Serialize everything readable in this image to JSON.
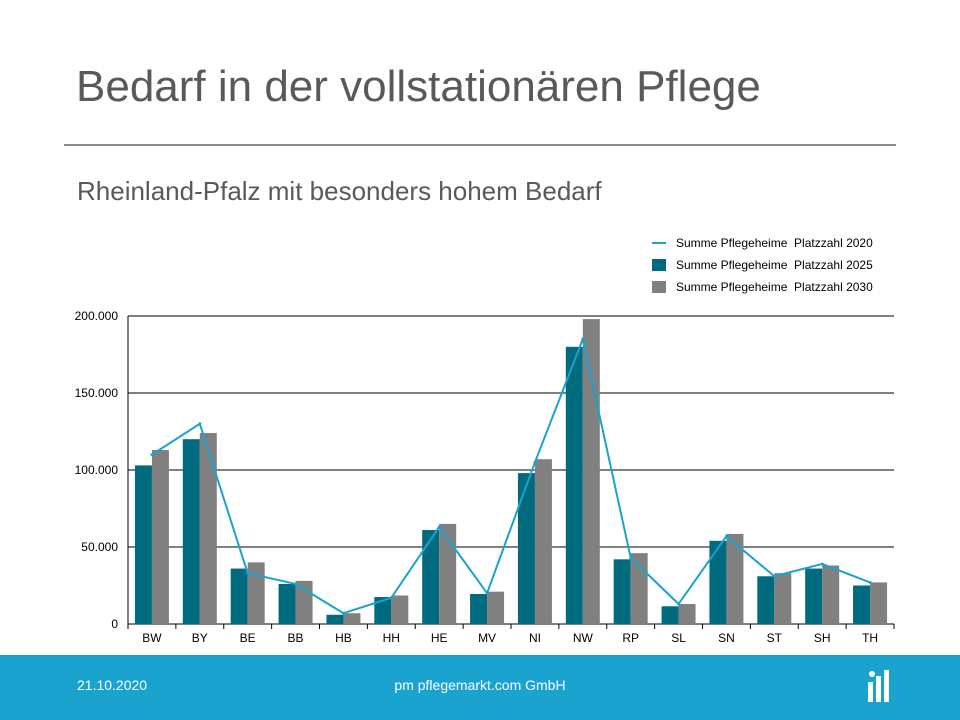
{
  "slide": {
    "title": "Bedarf in der vollstationären Pflege",
    "subtitle": "Rheinland-Pfalz mit besonders hohem Bedarf"
  },
  "footer": {
    "date": "21.10.2020",
    "company": "pm pflegemarkt.com GmbH",
    "logo_icon": "bar-chart-logo-icon"
  },
  "colors": {
    "series_2020": "#1aa3cf",
    "series_2025": "#006b7f",
    "series_2030": "#808080",
    "footer_bg": "#1aa3cf"
  },
  "chart_data": {
    "type": "bar",
    "categories": [
      "BW",
      "BY",
      "BE",
      "BB",
      "HB",
      "HH",
      "HE",
      "MV",
      "NI",
      "NW",
      "RP",
      "SL",
      "SN",
      "ST",
      "SH",
      "TH"
    ],
    "series": [
      {
        "name": "Summe Pflegeheime  Platzzahl 2020",
        "render": "line",
        "color": "#1aa3cf",
        "values": [
          110000,
          130000,
          33000,
          26000,
          7000,
          17000,
          63000,
          20000,
          105000,
          185000,
          43000,
          13000,
          57000,
          31000,
          39000,
          27000
        ]
      },
      {
        "name": "Summe Pflegeheime  Platzzahl 2025",
        "render": "bar",
        "color": "#006b7f",
        "values": [
          103000,
          120000,
          36000,
          26000,
          6000,
          17500,
          61000,
          19500,
          98000,
          180000,
          42000,
          11500,
          54000,
          31000,
          36000,
          25000
        ]
      },
      {
        "name": "Summe Pflegeheime  Platzzahl 2030",
        "render": "bar",
        "color": "#808080",
        "values": [
          113000,
          124000,
          40000,
          28000,
          7000,
          18500,
          65000,
          21000,
          107000,
          198000,
          46000,
          13000,
          58500,
          33000,
          38000,
          27000
        ]
      }
    ],
    "yticks": [
      "0",
      "50.000",
      "100.000",
      "150.000",
      "200.000"
    ],
    "ytick_values": [
      0,
      50000,
      100000,
      150000,
      200000
    ],
    "ylim": [
      0,
      200000
    ],
    "xlabel": "",
    "ylabel": "",
    "grid": "horizontal",
    "legend_position": "top-right"
  }
}
